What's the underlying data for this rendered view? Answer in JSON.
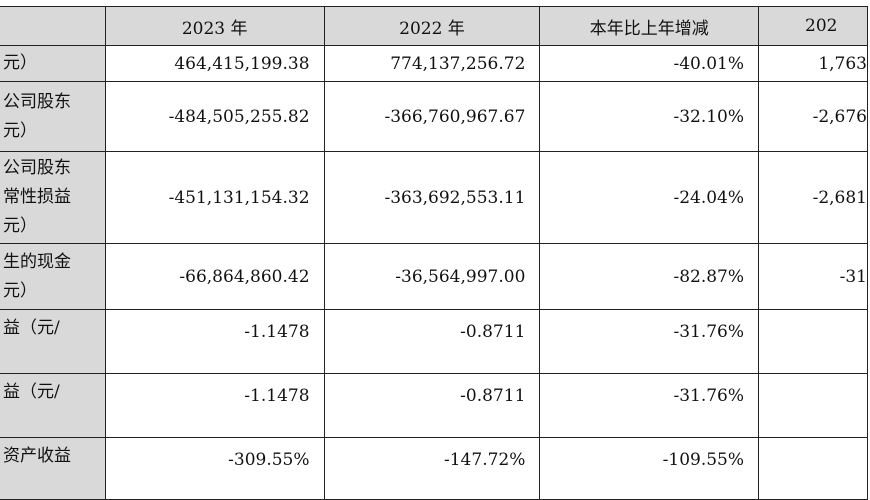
{
  "header": {
    "col1": "2023 年",
    "col2": "2022 年",
    "col3": "本年比上年增减",
    "col4": "202"
  },
  "rows": [
    {
      "label": [
        "元）"
      ],
      "v2023": "464,415,199.38",
      "v2022": "774,137,256.72",
      "change": "-40.01%",
      "prev": "1,763"
    },
    {
      "label": [
        "公司股东",
        "元）"
      ],
      "v2023": "-484,505,255.82",
      "v2022": "-366,760,967.67",
      "change": "-32.10%",
      "prev": "-2,676"
    },
    {
      "label": [
        "公司股东",
        "常性损益",
        "元）"
      ],
      "v2023": "-451,131,154.32",
      "v2022": "-363,692,553.11",
      "change": "-24.04%",
      "prev": "-2,681"
    },
    {
      "label": [
        "生的现金",
        "元）"
      ],
      "v2023": "-66,864,860.42",
      "v2022": "-36,564,997.00",
      "change": "-82.87%",
      "prev": "-31"
    },
    {
      "label": [
        "益（元/"
      ],
      "v2023": "-1.1478",
      "v2022": "-0.8711",
      "change": "-31.76%",
      "prev": ""
    },
    {
      "label": [
        "益（元/"
      ],
      "v2023": "-1.1478",
      "v2022": "-0.8711",
      "change": "-31.76%",
      "prev": ""
    },
    {
      "label": [
        "资产收益"
      ],
      "v2023": "-309.55%",
      "v2022": "-147.72%",
      "change": "-109.55%",
      "prev": ""
    }
  ]
}
